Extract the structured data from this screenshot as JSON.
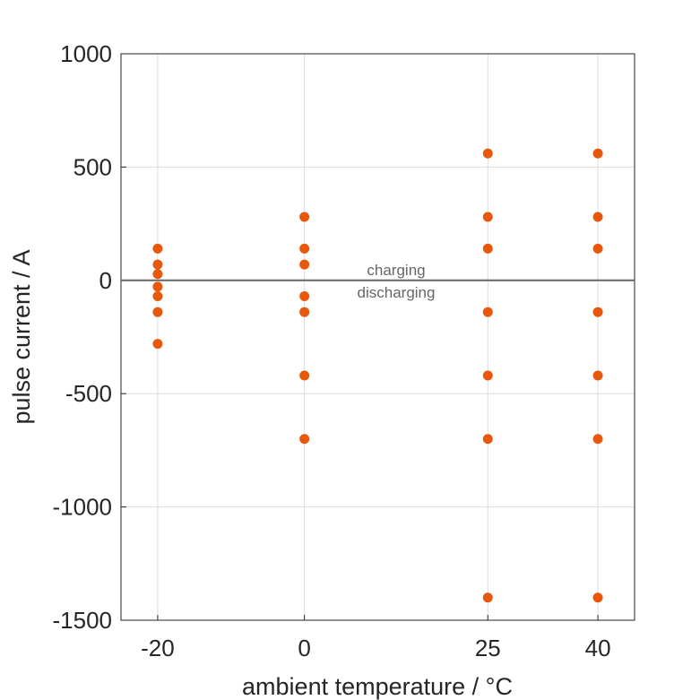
{
  "chart_data": {
    "type": "scatter",
    "title": "",
    "xlabel": "ambient temperature / °C",
    "ylabel": "pulse current / A",
    "xlim": [
      -25,
      45
    ],
    "ylim": [
      -1500,
      1000
    ],
    "xticks": [
      -20,
      0,
      25,
      40
    ],
    "xtick_labels": [
      "-20",
      "0",
      "25",
      "40"
    ],
    "yticks": [
      1000,
      500,
      0,
      -500,
      -1000,
      -1500
    ],
    "ytick_labels": [
      "1000",
      "500",
      "0",
      "-500",
      "-1000",
      "-1500"
    ],
    "grid": true,
    "marker_color": "#E8580C",
    "zero_line_color": "#666666",
    "annotations": {
      "above": "charging",
      "below": "discharging"
    },
    "points": [
      {
        "x": -20,
        "y": 140
      },
      {
        "x": -20,
        "y": 70
      },
      {
        "x": -20,
        "y": 28
      },
      {
        "x": -20,
        "y": -28
      },
      {
        "x": -20,
        "y": -70
      },
      {
        "x": -20,
        "y": -140
      },
      {
        "x": -20,
        "y": -280
      },
      {
        "x": 0,
        "y": 280
      },
      {
        "x": 0,
        "y": 140
      },
      {
        "x": 0,
        "y": 70
      },
      {
        "x": 0,
        "y": -70
      },
      {
        "x": 0,
        "y": -140
      },
      {
        "x": 0,
        "y": -420
      },
      {
        "x": 0,
        "y": -700
      },
      {
        "x": 25,
        "y": 560
      },
      {
        "x": 25,
        "y": 280
      },
      {
        "x": 25,
        "y": 140
      },
      {
        "x": 25,
        "y": -140
      },
      {
        "x": 25,
        "y": -420
      },
      {
        "x": 25,
        "y": -700
      },
      {
        "x": 25,
        "y": -1400
      },
      {
        "x": 40,
        "y": 560
      },
      {
        "x": 40,
        "y": 280
      },
      {
        "x": 40,
        "y": 140
      },
      {
        "x": 40,
        "y": -140
      },
      {
        "x": 40,
        "y": -420
      },
      {
        "x": 40,
        "y": -700
      },
      {
        "x": 40,
        "y": -1400
      }
    ]
  }
}
